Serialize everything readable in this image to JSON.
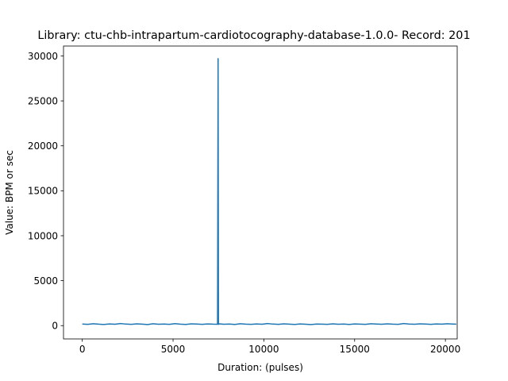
{
  "chart_data": {
    "type": "line",
    "title": "Library: ctu-chb-intrapartum-cardiotocography-database-1.0.0- Record: 201",
    "xlabel": "Duration: (pulses)",
    "ylabel": "Value: BPM or sec",
    "xlim": [
      -1035,
      20650
    ],
    "ylim": [
      -1480,
      31100
    ],
    "xticks": [
      0,
      5000,
      10000,
      15000,
      20000
    ],
    "yticks": [
      0,
      5000,
      10000,
      15000,
      20000,
      25000,
      30000
    ],
    "grid": false,
    "legend": "none",
    "series": [
      {
        "color": "#1f77b4",
        "x": [
          0,
          300,
          600,
          900,
          1200,
          1500,
          1800,
          2100,
          2400,
          2700,
          3000,
          3300,
          3600,
          3900,
          4200,
          4500,
          4800,
          5100,
          5400,
          5700,
          6000,
          6300,
          6600,
          6900,
          7200,
          7450,
          7480,
          7500,
          7520,
          7550,
          7800,
          8100,
          8400,
          8700,
          9000,
          9300,
          9600,
          9900,
          10200,
          10500,
          10800,
          11100,
          11400,
          11700,
          12000,
          12300,
          12600,
          12900,
          13200,
          13500,
          13800,
          14100,
          14400,
          14700,
          15000,
          15300,
          15600,
          15900,
          16200,
          16500,
          16800,
          17100,
          17400,
          17700,
          18000,
          18300,
          18600,
          18900,
          19200,
          19500,
          19800,
          20100,
          20400,
          20600
        ],
        "y": [
          180,
          140,
          210,
          160,
          130,
          190,
          150,
          230,
          170,
          140,
          200,
          160,
          120,
          210,
          150,
          180,
          140,
          220,
          160,
          130,
          200,
          170,
          140,
          190,
          160,
          150,
          29700,
          140,
          160,
          200,
          150,
          170,
          130,
          210,
          160,
          140,
          190,
          150,
          230,
          170,
          140,
          200,
          160,
          130,
          190,
          150,
          120,
          180,
          160,
          140,
          200,
          150,
          170,
          130,
          190,
          160,
          140,
          210,
          180,
          150,
          200,
          160,
          140,
          230,
          180,
          150,
          200,
          170,
          140,
          190,
          160,
          210,
          180,
          160
        ]
      }
    ]
  }
}
